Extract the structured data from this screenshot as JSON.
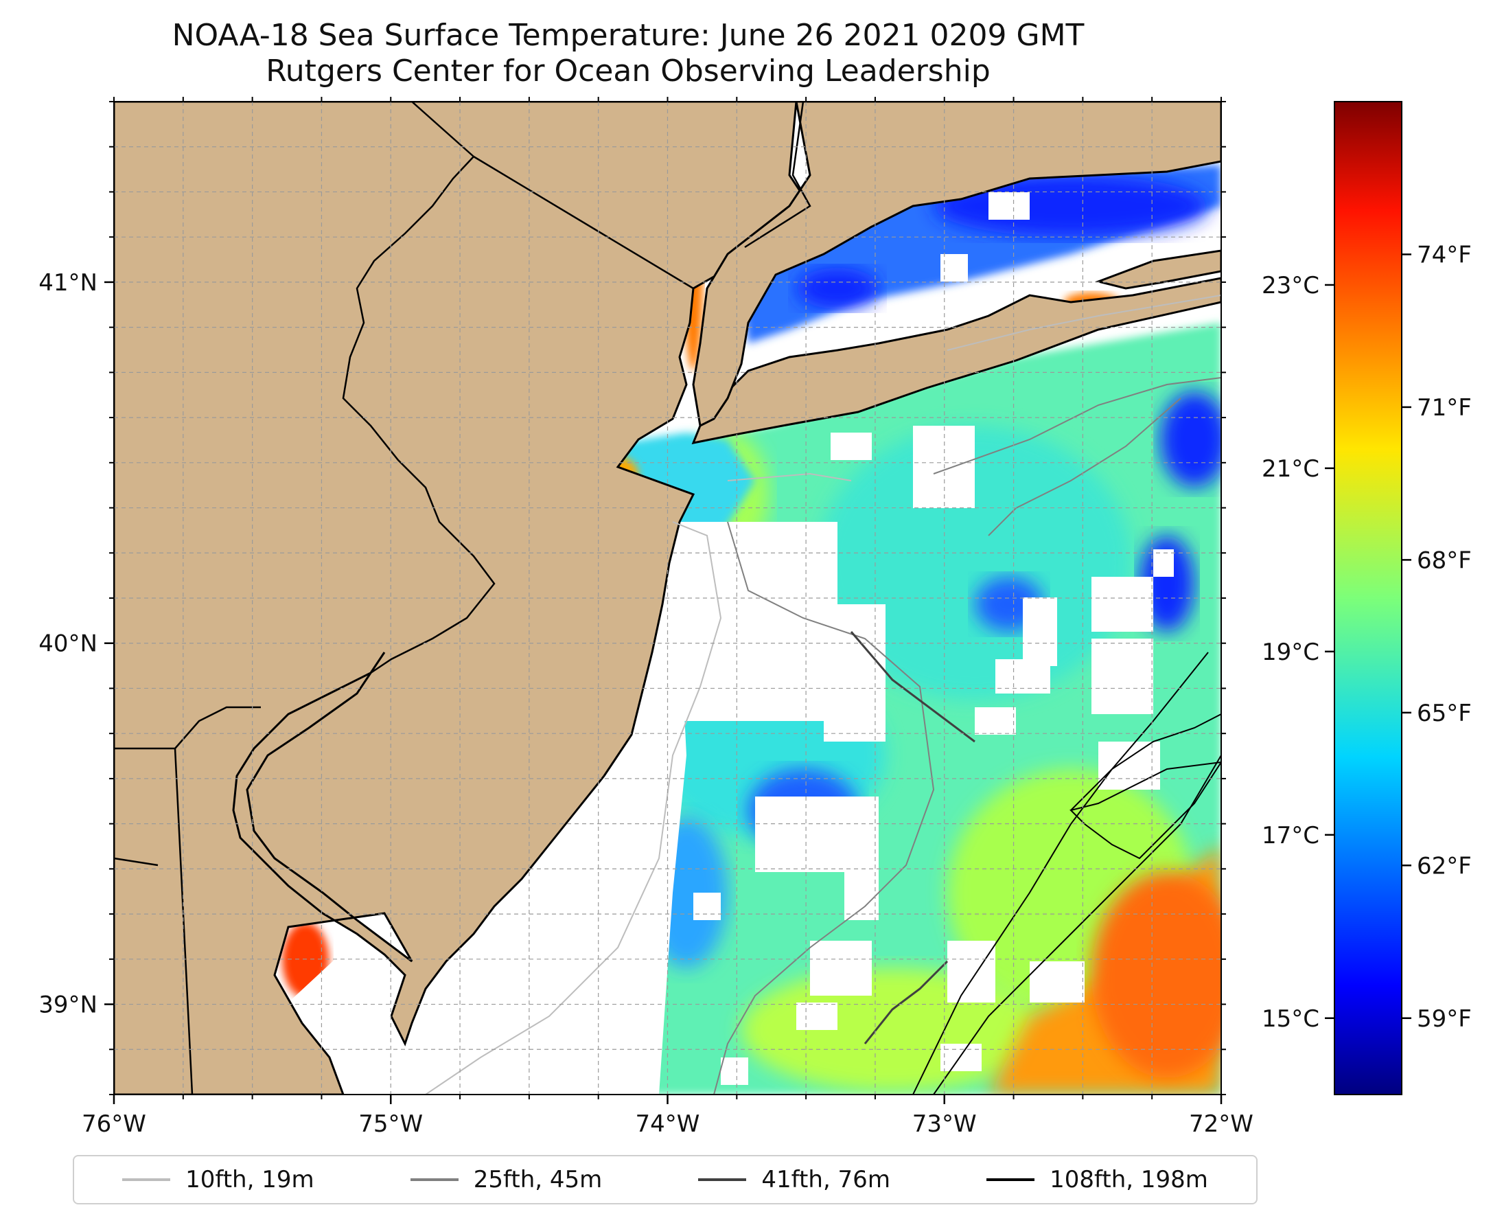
{
  "title": {
    "line1": "NOAA-18 Sea Surface Temperature: June 26 2021 0209 GMT",
    "line2": "Rutgers Center for Ocean Observing Leadership"
  },
  "map": {
    "lon_range": [
      -76,
      -72
    ],
    "lat_range": [
      38.75,
      41.5
    ],
    "lon_ticks": [
      {
        "value": -76,
        "label": "76°W"
      },
      {
        "value": -75,
        "label": "75°W"
      },
      {
        "value": -74,
        "label": "74°W"
      },
      {
        "value": -73,
        "label": "73°W"
      },
      {
        "value": -72,
        "label": "72°W"
      }
    ],
    "lat_ticks": [
      {
        "value": 41,
        "label": "41°N"
      },
      {
        "value": 40,
        "label": "40°N"
      },
      {
        "value": 39,
        "label": "39°N"
      }
    ],
    "land_color": "#d2b48c",
    "gridlines": true
  },
  "colorbar": {
    "colormap": "jet",
    "celsius_ticks": [
      {
        "value": 23,
        "label": "23°C"
      },
      {
        "value": 21,
        "label": "21°C"
      },
      {
        "value": 19,
        "label": "19°C"
      },
      {
        "value": 17,
        "label": "17°C"
      },
      {
        "value": 15,
        "label": "15°C"
      }
    ],
    "fahrenheit_ticks": [
      {
        "value": 74,
        "label": "74°F"
      },
      {
        "value": 71,
        "label": "71°F"
      },
      {
        "value": 68,
        "label": "68°F"
      },
      {
        "value": 65,
        "label": "65°F"
      },
      {
        "value": 62,
        "label": "62°F"
      },
      {
        "value": 59,
        "label": "59°F"
      }
    ]
  },
  "legend": {
    "placement": "bottom",
    "items": [
      {
        "label": "10fth, 19m",
        "color": "#bdbdbd"
      },
      {
        "label": "25fth, 45m",
        "color": "#808080"
      },
      {
        "label": "41fth, 76m",
        "color": "#404040"
      },
      {
        "label": "108fth, 198m",
        "color": "#000000"
      }
    ]
  }
}
